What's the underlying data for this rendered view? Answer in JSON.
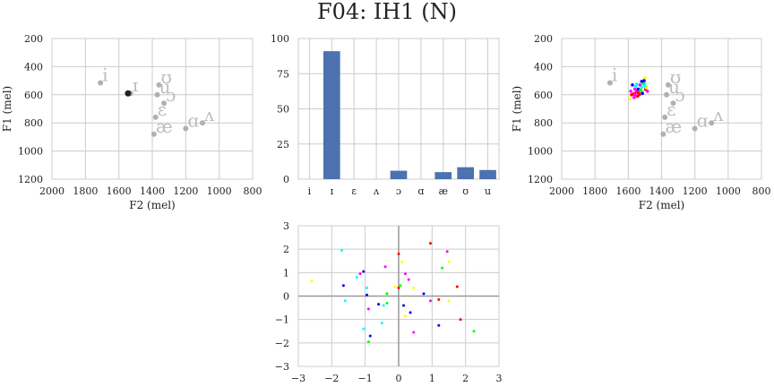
{
  "title": "F04: IH1 (N)",
  "colors": {
    "grid": "#cccccc",
    "frame": "#cccccc",
    "bar": "#4c72b0",
    "vowel_marker": "#b0b0b0",
    "vowel_label": "#bdbdbd",
    "target": "#222222",
    "axis_zero": "#999999"
  },
  "chart_data": [
    {
      "id": "vowel-space",
      "type": "scatter",
      "xlabel": "F2 (mel)",
      "ylabel": "F1 (mel)",
      "xlim": [
        2000,
        800
      ],
      "ylim": [
        1200,
        200
      ],
      "xticks": [
        "2000",
        "1800",
        "1600",
        "1400",
        "1200",
        "1000",
        "800"
      ],
      "xtick_values": [
        2000,
        1800,
        1600,
        1400,
        1200,
        1000,
        800
      ],
      "yticks": [
        "200",
        "400",
        "600",
        "800",
        "1000",
        "1200"
      ],
      "ytick_values": [
        200,
        400,
        600,
        800,
        1000,
        1200
      ],
      "grid": true,
      "vowels": [
        {
          "label": "i",
          "x": 1710,
          "y": 515
        },
        {
          "label": "ɪ",
          "x": 1530,
          "y": 590
        },
        {
          "label": "ʊ",
          "x": 1360,
          "y": 530
        },
        {
          "label": "u",
          "x": 1370,
          "y": 600
        },
        {
          "label": "ɔ",
          "x": 1330,
          "y": 660
        },
        {
          "label": "ɛ",
          "x": 1380,
          "y": 760
        },
        {
          "label": "æ",
          "x": 1390,
          "y": 880
        },
        {
          "label": "ɑ",
          "x": 1200,
          "y": 840
        },
        {
          "label": "ʌ",
          "x": 1100,
          "y": 800
        }
      ],
      "target": {
        "x": 1545,
        "y": 590
      }
    },
    {
      "id": "classification-bars",
      "type": "bar",
      "categories": [
        "i",
        "ɪ",
        "ɛ",
        "ʌ",
        "ɔ",
        "ɑ",
        "æ",
        "ʊ",
        "u"
      ],
      "values": [
        0,
        91,
        0,
        0,
        6,
        0,
        5,
        8.5,
        6.5
      ],
      "ylim": [
        0,
        100
      ],
      "yticks": [
        "0",
        "25",
        "50",
        "75",
        "100"
      ],
      "ytick_values": [
        0,
        25,
        50,
        75,
        100
      ],
      "grid": true
    },
    {
      "id": "token-space",
      "type": "scatter",
      "xlabel": "F2 (mel)",
      "ylabel": "F1 (mel)",
      "xlim": [
        2000,
        800
      ],
      "ylim": [
        1200,
        200
      ],
      "xticks": [
        "2000",
        "1800",
        "1600",
        "1400",
        "1200",
        "1000",
        "800"
      ],
      "xtick_values": [
        2000,
        1800,
        1600,
        1400,
        1200,
        1000,
        800
      ],
      "yticks": [
        "200",
        "400",
        "600",
        "800",
        "1000",
        "1200"
      ],
      "ytick_values": [
        200,
        400,
        600,
        800,
        1000,
        1200
      ],
      "grid": true,
      "tokens": [
        {
          "x": 1560,
          "y": 590,
          "color": "#ff0000"
        },
        {
          "x": 1550,
          "y": 575,
          "color": "#ff00ff"
        },
        {
          "x": 1540,
          "y": 560,
          "color": "#0000ff"
        },
        {
          "x": 1520,
          "y": 545,
          "color": "#00ffff"
        },
        {
          "x": 1510,
          "y": 520,
          "color": "#00ff00"
        },
        {
          "x": 1500,
          "y": 480,
          "color": "#ffff00"
        },
        {
          "x": 1505,
          "y": 500,
          "color": "#0000ff"
        },
        {
          "x": 1530,
          "y": 530,
          "color": "#ff00ff"
        },
        {
          "x": 1545,
          "y": 610,
          "color": "#ff0000"
        },
        {
          "x": 1565,
          "y": 620,
          "color": "#ff00ff"
        },
        {
          "x": 1580,
          "y": 600,
          "color": "#ff0000"
        },
        {
          "x": 1575,
          "y": 530,
          "color": "#0000ff"
        },
        {
          "x": 1555,
          "y": 540,
          "color": "#00ffff"
        },
        {
          "x": 1525,
          "y": 565,
          "color": "#00ff00"
        },
        {
          "x": 1495,
          "y": 560,
          "color": "#ff0000"
        },
        {
          "x": 1485,
          "y": 575,
          "color": "#ff00ff"
        },
        {
          "x": 1490,
          "y": 550,
          "color": "#ffff00"
        },
        {
          "x": 1515,
          "y": 590,
          "color": "#0000ff"
        },
        {
          "x": 1535,
          "y": 600,
          "color": "#ff0000"
        },
        {
          "x": 1560,
          "y": 560,
          "color": "#ff00ff"
        },
        {
          "x": 1585,
          "y": 575,
          "color": "#ff00ff"
        },
        {
          "x": 1570,
          "y": 595,
          "color": "#ff0000"
        },
        {
          "x": 1590,
          "y": 630,
          "color": "#ffff00"
        },
        {
          "x": 1550,
          "y": 525,
          "color": "#00ffff"
        },
        {
          "x": 1520,
          "y": 505,
          "color": "#0000ff"
        },
        {
          "x": 1500,
          "y": 535,
          "color": "#00ffff"
        },
        {
          "x": 1540,
          "y": 585,
          "color": "#ff0000"
        },
        {
          "x": 1560,
          "y": 600,
          "color": "#ff00ff"
        }
      ]
    },
    {
      "id": "normalized-scatter",
      "type": "scatter",
      "xlim": [
        -3,
        3
      ],
      "ylim": [
        -3,
        3
      ],
      "xticks": [
        "−3",
        "−2",
        "−1",
        "0",
        "1",
        "2",
        "3"
      ],
      "xtick_values": [
        -3,
        -2,
        -1,
        0,
        1,
        2,
        3
      ],
      "yticks": [
        "−3",
        "−2",
        "−1",
        "0",
        "1",
        "2",
        "3"
      ],
      "ytick_values": [
        -3,
        -2,
        -1,
        0,
        1,
        2,
        3
      ],
      "grid": true,
      "points": [
        {
          "x": -2.6,
          "y": 0.65,
          "color": "#ffff00"
        },
        {
          "x": -1.7,
          "y": 1.95,
          "color": "#00ffff"
        },
        {
          "x": -1.65,
          "y": 0.45,
          "color": "#0000ff"
        },
        {
          "x": -1.6,
          "y": -0.2,
          "color": "#00ffff"
        },
        {
          "x": -1.25,
          "y": 0.8,
          "color": "#00ffff"
        },
        {
          "x": -1.15,
          "y": 0.95,
          "color": "#ff00ff"
        },
        {
          "x": -1.05,
          "y": 1.05,
          "color": "#0000ff"
        },
        {
          "x": -1.05,
          "y": -1.4,
          "color": "#00ffff"
        },
        {
          "x": -0.95,
          "y": 0.05,
          "color": "#0000ff"
        },
        {
          "x": -0.95,
          "y": 0.35,
          "color": "#00ffff"
        },
        {
          "x": -0.9,
          "y": -0.55,
          "color": "#ff00ff"
        },
        {
          "x": -0.9,
          "y": -1.95,
          "color": "#00ff00"
        },
        {
          "x": -0.85,
          "y": -1.7,
          "color": "#0000ff"
        },
        {
          "x": -0.6,
          "y": -0.35,
          "color": "#0000ff"
        },
        {
          "x": -0.5,
          "y": -1.15,
          "color": "#00ffff"
        },
        {
          "x": -0.45,
          "y": -0.4,
          "color": "#00ffff"
        },
        {
          "x": -0.4,
          "y": 1.25,
          "color": "#ff00ff"
        },
        {
          "x": -0.35,
          "y": 0.1,
          "color": "#00ff00"
        },
        {
          "x": -0.35,
          "y": -0.3,
          "color": "#00ff00"
        },
        {
          "x": -0.1,
          "y": 0.4,
          "color": "#ffff00"
        },
        {
          "x": 0.0,
          "y": 1.8,
          "color": "#ff0000"
        },
        {
          "x": 0.0,
          "y": 0.35,
          "color": "#ff0000"
        },
        {
          "x": 0.05,
          "y": 0.45,
          "color": "#00ff00"
        },
        {
          "x": 0.1,
          "y": 1.45,
          "color": "#ffff00"
        },
        {
          "x": 0.15,
          "y": -0.4,
          "color": "#0000ff"
        },
        {
          "x": 0.2,
          "y": 0.95,
          "color": "#ff00ff"
        },
        {
          "x": 0.2,
          "y": -0.85,
          "color": "#ffff00"
        },
        {
          "x": 0.3,
          "y": 0.7,
          "color": "#ff00ff"
        },
        {
          "x": 0.35,
          "y": -0.7,
          "color": "#0000ff"
        },
        {
          "x": 0.45,
          "y": -1.55,
          "color": "#ff00ff"
        },
        {
          "x": 0.45,
          "y": 0.35,
          "color": "#ffff00"
        },
        {
          "x": 0.75,
          "y": 0.1,
          "color": "#0000ff"
        },
        {
          "x": 0.95,
          "y": -0.2,
          "color": "#ff00ff"
        },
        {
          "x": 0.95,
          "y": 2.25,
          "color": "#ff0000"
        },
        {
          "x": 1.2,
          "y": -1.25,
          "color": "#0000ff"
        },
        {
          "x": 1.2,
          "y": -0.15,
          "color": "#ff0000"
        },
        {
          "x": 1.3,
          "y": 1.2,
          "color": "#00ff00"
        },
        {
          "x": 1.45,
          "y": 1.9,
          "color": "#ff00ff"
        },
        {
          "x": 1.5,
          "y": 1.45,
          "color": "#ffff00"
        },
        {
          "x": 1.5,
          "y": -0.2,
          "color": "#ffff00"
        },
        {
          "x": 1.75,
          "y": 0.4,
          "color": "#ff0000"
        },
        {
          "x": 1.85,
          "y": -1.0,
          "color": "#ff0000"
        },
        {
          "x": 2.25,
          "y": -1.5,
          "color": "#00ff00"
        }
      ]
    }
  ]
}
